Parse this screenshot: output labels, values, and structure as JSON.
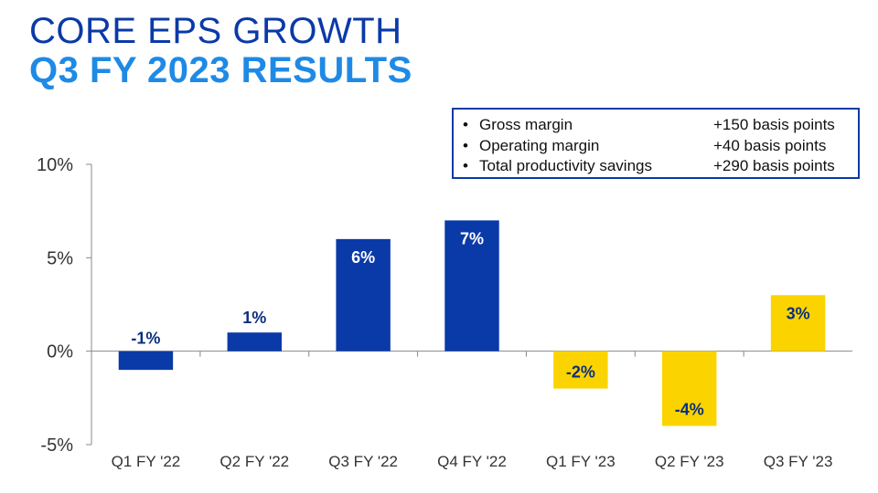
{
  "header": {
    "title_line1": "CORE EPS GROWTH",
    "title_line2": "Q3 FY 2023 RESULTS"
  },
  "info_box": {
    "items": [
      {
        "label": "Gross margin",
        "value": "+150 basis points"
      },
      {
        "label": "Operating margin",
        "value": "+40 basis points"
      },
      {
        "label": "Total productivity savings",
        "value": "+290 basis points"
      }
    ]
  },
  "chart_data": {
    "type": "bar",
    "categories": [
      "Q1 FY '22",
      "Q2 FY '22",
      "Q3 FY '22",
      "Q4 FY '22",
      "Q1 FY '23",
      "Q2 FY '23",
      "Q3 FY '23"
    ],
    "values": [
      -1,
      1,
      6,
      7,
      -2,
      -4,
      3
    ],
    "data_labels": [
      "-1%",
      "1%",
      "6%",
      "7%",
      "-2%",
      "-4%",
      "3%"
    ],
    "ylim": [
      -5,
      10
    ],
    "y_ticks": [
      10,
      5,
      0,
      -5
    ],
    "y_tick_labels": [
      "10%",
      "5%",
      "0%",
      "-5%"
    ],
    "grid": false,
    "colors": {
      "fy22_bar": "#0a3aa8",
      "fy23_bar": "#fbd400",
      "label_on_blue": "#ffffff",
      "label_on_yellow": "#0a2f80",
      "label_outside": "#0a2f80"
    },
    "bar_color_groups": [
      "fy22",
      "fy22",
      "fy22",
      "fy22",
      "fy23",
      "fy23",
      "fy23"
    ]
  }
}
